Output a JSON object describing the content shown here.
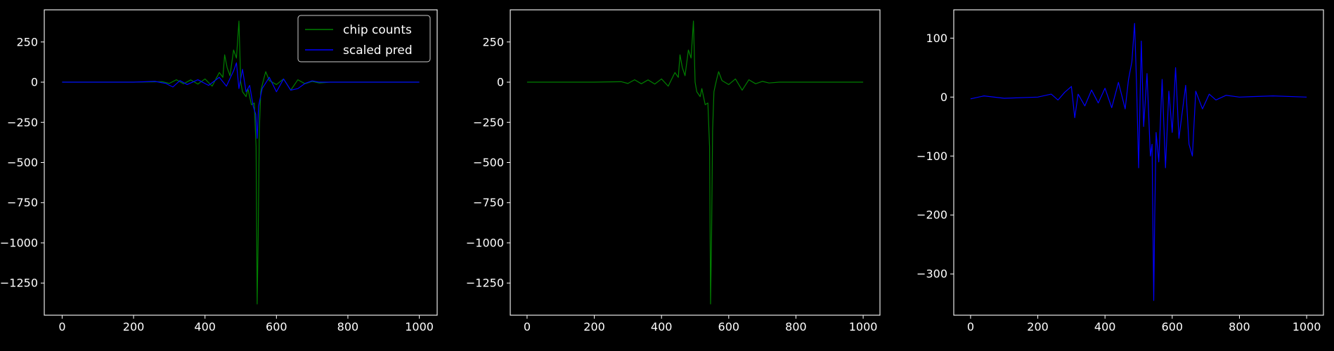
{
  "colors": {
    "background": "#000000",
    "axes": "#ffffff",
    "series_green": "#008000",
    "series_blue": "#0000ff"
  },
  "chart_data": [
    {
      "type": "line",
      "title": "",
      "xlabel": "",
      "ylabel": "",
      "xlim": [
        -50,
        1050
      ],
      "ylim": [
        -1450,
        450
      ],
      "xticks": [
        0,
        200,
        400,
        600,
        800,
        1000
      ],
      "xtick_labels": [
        "0",
        "200",
        "400",
        "600",
        "800",
        "1000"
      ],
      "yticks": [
        250,
        0,
        -250,
        -500,
        -750,
        -1000,
        -1250
      ],
      "ytick_labels": [
        "250",
        "0",
        "−250",
        "−500",
        "−750",
        "−1000",
        "−1250"
      ],
      "legend": {
        "placement": "top-right",
        "entries": [
          "chip counts",
          "scaled pred"
        ]
      },
      "grid": false,
      "series": [
        {
          "name": "chip counts",
          "color": "#008000",
          "points": [
            [
              0,
              0
            ],
            [
              100,
              0
            ],
            [
              200,
              0
            ],
            [
              280,
              3
            ],
            [
              300,
              -8
            ],
            [
              320,
              15
            ],
            [
              340,
              -10
            ],
            [
              360,
              14
            ],
            [
              380,
              -12
            ],
            [
              400,
              20
            ],
            [
              420,
              -25
            ],
            [
              440,
              60
            ],
            [
              450,
              30
            ],
            [
              455,
              170
            ],
            [
              462,
              90
            ],
            [
              470,
              40
            ],
            [
              480,
              200
            ],
            [
              488,
              150
            ],
            [
              495,
              380
            ],
            [
              500,
              0
            ],
            [
              505,
              -60
            ],
            [
              515,
              -90
            ],
            [
              520,
              -40
            ],
            [
              530,
              -140
            ],
            [
              538,
              -130
            ],
            [
              543,
              -400
            ],
            [
              546,
              -1380
            ],
            [
              549,
              -950
            ],
            [
              552,
              -300
            ],
            [
              556,
              -60
            ],
            [
              560,
              -20
            ],
            [
              565,
              25
            ],
            [
              570,
              65
            ],
            [
              580,
              10
            ],
            [
              600,
              -15
            ],
            [
              620,
              20
            ],
            [
              640,
              -50
            ],
            [
              660,
              15
            ],
            [
              680,
              -10
            ],
            [
              700,
              5
            ],
            [
              720,
              -5
            ],
            [
              750,
              0
            ],
            [
              850,
              0
            ],
            [
              1000,
              0
            ]
          ]
        },
        {
          "name": "scaled pred",
          "color": "#0000ff",
          "points": [
            [
              0,
              0
            ],
            [
              100,
              0
            ],
            [
              200,
              0
            ],
            [
              260,
              5
            ],
            [
              290,
              -8
            ],
            [
              310,
              -30
            ],
            [
              330,
              10
            ],
            [
              350,
              -15
            ],
            [
              380,
              15
            ],
            [
              410,
              -20
            ],
            [
              440,
              30
            ],
            [
              460,
              -25
            ],
            [
              480,
              70
            ],
            [
              488,
              120
            ],
            [
              495,
              -40
            ],
            [
              505,
              80
            ],
            [
              515,
              -60
            ],
            [
              525,
              -20
            ],
            [
              535,
              -150
            ],
            [
              542,
              -200
            ],
            [
              546,
              -350
            ],
            [
              550,
              -150
            ],
            [
              560,
              -40
            ],
            [
              580,
              30
            ],
            [
              600,
              -60
            ],
            [
              620,
              20
            ],
            [
              640,
              -50
            ],
            [
              660,
              -40
            ],
            [
              680,
              -8
            ],
            [
              700,
              8
            ],
            [
              720,
              0
            ],
            [
              800,
              0
            ],
            [
              1000,
              0
            ]
          ]
        }
      ]
    },
    {
      "type": "line",
      "title": "",
      "xlabel": "",
      "ylabel": "",
      "xlim": [
        -50,
        1050
      ],
      "ylim": [
        -1450,
        450
      ],
      "xticks": [
        0,
        200,
        400,
        600,
        800,
        1000
      ],
      "xtick_labels": [
        "0",
        "200",
        "400",
        "600",
        "800",
        "1000"
      ],
      "yticks": [
        250,
        0,
        -250,
        -500,
        -750,
        -1000,
        -1250
      ],
      "ytick_labels": [
        "250",
        "0",
        "−250",
        "−500",
        "−750",
        "−1000",
        "−1250"
      ],
      "grid": false,
      "series": [
        {
          "name": "",
          "color": "#008000",
          "points": [
            [
              0,
              0
            ],
            [
              100,
              0
            ],
            [
              200,
              0
            ],
            [
              280,
              3
            ],
            [
              300,
              -8
            ],
            [
              320,
              15
            ],
            [
              340,
              -10
            ],
            [
              360,
              14
            ],
            [
              380,
              -12
            ],
            [
              400,
              20
            ],
            [
              420,
              -25
            ],
            [
              440,
              60
            ],
            [
              450,
              30
            ],
            [
              455,
              170
            ],
            [
              462,
              90
            ],
            [
              470,
              40
            ],
            [
              480,
              200
            ],
            [
              488,
              150
            ],
            [
              495,
              380
            ],
            [
              500,
              0
            ],
            [
              505,
              -60
            ],
            [
              515,
              -90
            ],
            [
              520,
              -40
            ],
            [
              530,
              -140
            ],
            [
              538,
              -130
            ],
            [
              543,
              -400
            ],
            [
              546,
              -1380
            ],
            [
              549,
              -950
            ],
            [
              552,
              -300
            ],
            [
              556,
              -60
            ],
            [
              560,
              -20
            ],
            [
              565,
              25
            ],
            [
              570,
              65
            ],
            [
              580,
              10
            ],
            [
              600,
              -15
            ],
            [
              620,
              20
            ],
            [
              640,
              -50
            ],
            [
              660,
              15
            ],
            [
              680,
              -10
            ],
            [
              700,
              5
            ],
            [
              720,
              -5
            ],
            [
              750,
              0
            ],
            [
              850,
              0
            ],
            [
              1000,
              0
            ]
          ]
        }
      ]
    },
    {
      "type": "line",
      "title": "",
      "xlabel": "",
      "ylabel": "",
      "xlim": [
        -50,
        1050
      ],
      "ylim": [
        -370,
        148
      ],
      "xticks": [
        0,
        200,
        400,
        600,
        800,
        1000
      ],
      "xtick_labels": [
        "0",
        "200",
        "400",
        "600",
        "800",
        "1000"
      ],
      "yticks": [
        100,
        0,
        -100,
        -200,
        -300
      ],
      "ytick_labels": [
        "100",
        "0",
        "−100",
        "−200",
        "−300"
      ],
      "grid": false,
      "series": [
        {
          "name": "",
          "color": "#0000ff",
          "points": [
            [
              0,
              -3
            ],
            [
              40,
              2
            ],
            [
              100,
              -2
            ],
            [
              200,
              0
            ],
            [
              240,
              5
            ],
            [
              260,
              -5
            ],
            [
              280,
              8
            ],
            [
              300,
              18
            ],
            [
              310,
              -35
            ],
            [
              320,
              5
            ],
            [
              340,
              -15
            ],
            [
              360,
              12
            ],
            [
              380,
              -10
            ],
            [
              400,
              15
            ],
            [
              420,
              -18
            ],
            [
              440,
              25
            ],
            [
              460,
              -20
            ],
            [
              470,
              30
            ],
            [
              480,
              60
            ],
            [
              488,
              125
            ],
            [
              494,
              20
            ],
            [
              500,
              -120
            ],
            [
              508,
              95
            ],
            [
              515,
              -50
            ],
            [
              525,
              40
            ],
            [
              535,
              -100
            ],
            [
              540,
              -80
            ],
            [
              545,
              -345
            ],
            [
              548,
              -200
            ],
            [
              552,
              -60
            ],
            [
              560,
              -110
            ],
            [
              570,
              30
            ],
            [
              580,
              -120
            ],
            [
              590,
              10
            ],
            [
              600,
              -60
            ],
            [
              610,
              50
            ],
            [
              620,
              -70
            ],
            [
              640,
              20
            ],
            [
              650,
              -80
            ],
            [
              660,
              -100
            ],
            [
              670,
              10
            ],
            [
              690,
              -20
            ],
            [
              710,
              5
            ],
            [
              730,
              -5
            ],
            [
              760,
              3
            ],
            [
              800,
              0
            ],
            [
              900,
              2
            ],
            [
              1000,
              0
            ]
          ]
        }
      ]
    }
  ]
}
